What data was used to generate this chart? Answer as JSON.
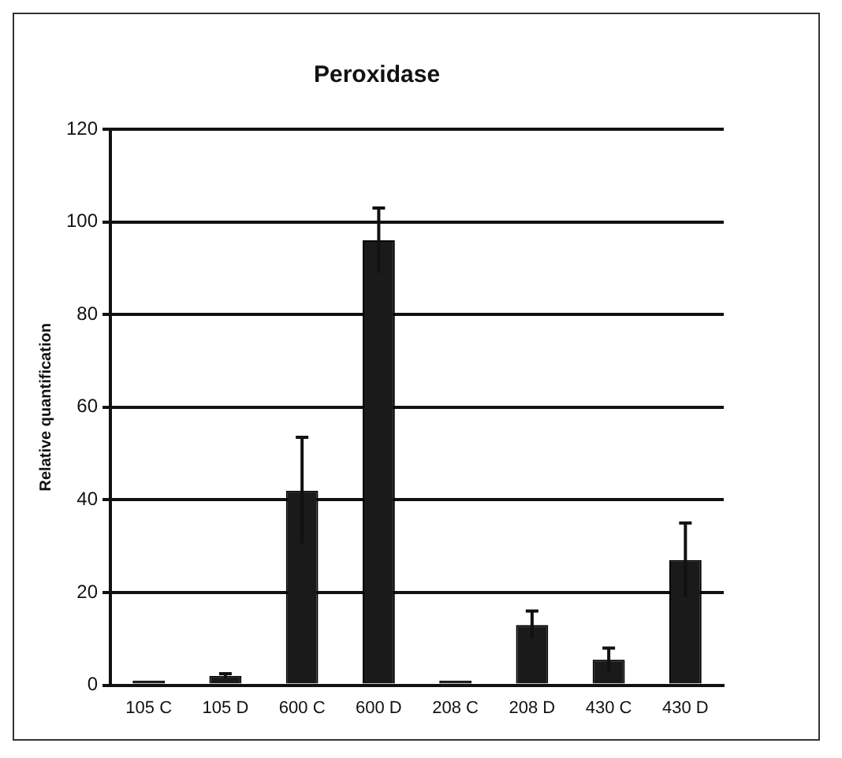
{
  "chart_data": {
    "type": "bar",
    "title": "Peroxidase",
    "ylabel": "Relative quantification",
    "categories": [
      "105 C",
      "105 D",
      "600 C",
      "600 D",
      "208 C",
      "208 D",
      "430 C",
      "430 D"
    ],
    "values": [
      1,
      2,
      42,
      96,
      1,
      13,
      5.5,
      27
    ],
    "errors": [
      null,
      0.5,
      11.5,
      7,
      null,
      3,
      2.5,
      8
    ],
    "color": "#1a1a1a",
    "ylim": [
      0,
      120
    ],
    "yticks": [
      0,
      20,
      40,
      60,
      80,
      100,
      120
    ],
    "grid": "y",
    "legend": false
  }
}
